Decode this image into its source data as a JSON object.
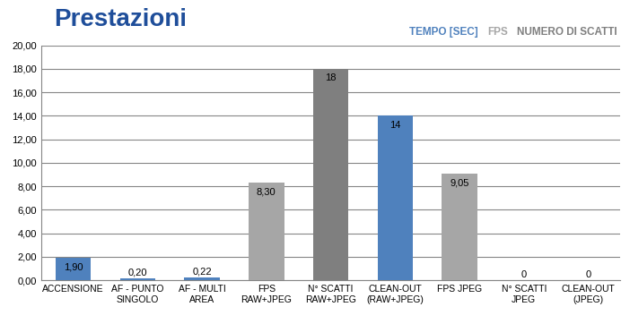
{
  "chart_data": {
    "type": "bar",
    "title": "Prestazioni",
    "categories": [
      "ACCENSIONE",
      "AF - PUNTO\nSINGOLO",
      "AF - MULTI\nAREA",
      "FPS\nRAW+JPEG",
      "N° SCATTI\nRAW+JPEG",
      "CLEAN-OUT\n(RAW+JPEG)",
      "FPS JPEG",
      "N° SCATTI\nJPEG",
      "CLEAN-OUT\n(JPEG)"
    ],
    "series": [
      {
        "name": "TEMPO [SEC]",
        "color": "#4f81bd",
        "values": [
          1.9,
          0.2,
          0.22,
          null,
          null,
          14,
          null,
          null,
          0
        ],
        "value_labels": [
          "1,90",
          "0,20",
          "0,22",
          null,
          null,
          "14",
          null,
          null,
          "0"
        ]
      },
      {
        "name": "FPS",
        "color": "#a6a6a6",
        "values": [
          null,
          null,
          null,
          8.3,
          null,
          null,
          9.05,
          null,
          null
        ],
        "value_labels": [
          null,
          null,
          null,
          "8,30",
          null,
          null,
          "9,05",
          null,
          null
        ]
      },
      {
        "name": "NUMERO DI SCATTI",
        "color": "#7f7f7f",
        "values": [
          null,
          null,
          null,
          null,
          18,
          null,
          null,
          0,
          null
        ],
        "value_labels": [
          null,
          null,
          null,
          null,
          "18",
          null,
          null,
          "0",
          null
        ]
      }
    ],
    "ylim": [
      0,
      20
    ],
    "yticks": [
      {
        "value": 0,
        "label": "0,00"
      },
      {
        "value": 2,
        "label": "2,00"
      },
      {
        "value": 4,
        "label": "4,00"
      },
      {
        "value": 6,
        "label": "6,00"
      },
      {
        "value": 8,
        "label": "8,00"
      },
      {
        "value": 10,
        "label": "10,00"
      },
      {
        "value": 12,
        "label": "12,00"
      },
      {
        "value": 14,
        "label": "14,00"
      },
      {
        "value": 16,
        "label": "16,00"
      },
      {
        "value": 18,
        "label": "18,00"
      },
      {
        "value": 20,
        "label": "20,00"
      }
    ],
    "grid": true,
    "data_labels": true,
    "legend": "upper right"
  }
}
